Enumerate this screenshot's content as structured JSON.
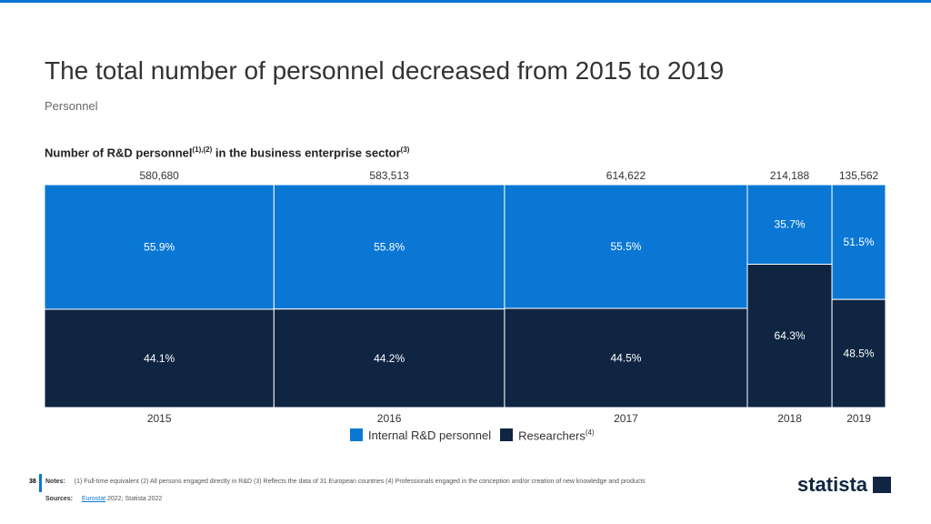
{
  "header": {
    "title": "The total number of personnel decreased from 2015 to 2019",
    "subtitle": "Personnel"
  },
  "chart_data": {
    "type": "mekko",
    "title": "Number of R&D personnel",
    "title_sup1": "(1),(2)",
    "title_mid": " in the business enterprise sector",
    "title_sup2": "(3)",
    "categories": [
      "2015",
      "2016",
      "2017",
      "2018",
      "2019"
    ],
    "totals": [
      580680,
      583513,
      614622,
      214188,
      135562
    ],
    "total_labels": [
      "580,680",
      "583,513",
      "614,622",
      "214,188",
      "135,562"
    ],
    "series": [
      {
        "name": "Internal R&D personnel",
        "sup": "",
        "color": "#0a77d5",
        "values": [
          55.9,
          55.8,
          55.5,
          35.7,
          51.5
        ]
      },
      {
        "name": "Researchers",
        "sup": "(4)",
        "color": "#0f2542",
        "values": [
          44.1,
          44.2,
          44.5,
          64.3,
          48.5
        ]
      }
    ],
    "legend": "bottom"
  },
  "footer": {
    "page": "38",
    "notes_label": "Notes:",
    "notes": "(1) Full-time equivalent (2) All persons engaged directly in R&D (3) Reflects the data of 31 European countries (4) Professionals engaged in the conception and/or creation of new knowledge and products",
    "sources_label": "Sources:",
    "source_link": "Eurostat",
    "sources_rest": " 2022; Statista 2022",
    "logo": "statista"
  }
}
